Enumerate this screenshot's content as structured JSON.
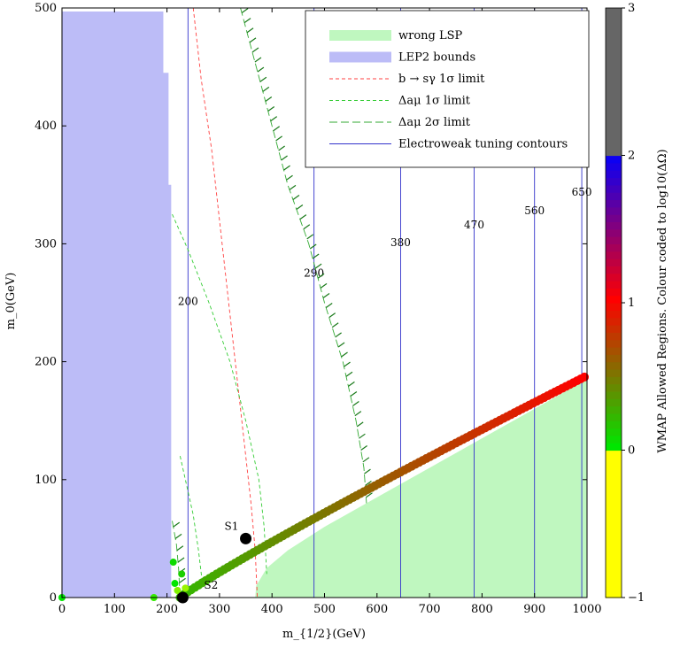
{
  "chart_data": {
    "type": "scatter",
    "xlabel": "m_{1/2}(GeV)",
    "ylabel": "m_0(GeV)",
    "xlim": [
      0,
      1000
    ],
    "ylim": [
      0,
      500
    ],
    "xticks": [
      0,
      100,
      200,
      300,
      400,
      500,
      600,
      700,
      800,
      900,
      1000
    ],
    "yticks": [
      0,
      100,
      200,
      300,
      400,
      500
    ],
    "grid": false,
    "legend": {
      "placement": "top-right",
      "entries": [
        {
          "label": "wrong LSP",
          "kind": "patch",
          "color": "#bff7bf"
        },
        {
          "label": "LEP2 bounds",
          "kind": "patch",
          "color": "#bcbcf7"
        },
        {
          "label": "b → sγ 1σ limit",
          "kind": "line",
          "color": "#ff4040",
          "dash": "4,3"
        },
        {
          "label": "Δaμ 1σ limit",
          "kind": "line",
          "color": "#33cc33",
          "dash": "4,3"
        },
        {
          "label": "Δaμ 2σ limit",
          "kind": "line",
          "color": "#33aa33",
          "dash": "9,4"
        },
        {
          "label": "Electroweak tuning contours",
          "kind": "line",
          "color": "#3333cc",
          "dash": ""
        }
      ]
    },
    "colorbar": {
      "label": "WMAP Allowed Regions. Colour coded to log10(ΔΩ)",
      "range": [
        -1,
        3
      ],
      "ticks": [
        "−1",
        "0",
        "1",
        "2",
        "3"
      ]
    },
    "lep2_region": [
      [
        0,
        0
      ],
      [
        0,
        497
      ],
      [
        193,
        497
      ],
      [
        193,
        445
      ],
      [
        203,
        445
      ],
      [
        203,
        350
      ],
      [
        208,
        350
      ],
      [
        208,
        0
      ]
    ],
    "wrong_lsp_region": [
      [
        368,
        0
      ],
      [
        1000,
        0
      ],
      [
        1000,
        185
      ],
      [
        900,
        160
      ],
      [
        800,
        135
      ],
      [
        700,
        110
      ],
      [
        600,
        85
      ],
      [
        500,
        60
      ],
      [
        430,
        40
      ],
      [
        390,
        25
      ],
      [
        370,
        10
      ]
    ],
    "tuning_contours": [
      {
        "x": 240,
        "label": "200",
        "label_y": 248
      },
      {
        "x": 480,
        "label": "290",
        "label_y": 272
      },
      {
        "x": 645,
        "label": "380",
        "label_y": 298
      },
      {
        "x": 785,
        "label": "470",
        "label_y": 313
      },
      {
        "x": 900,
        "label": "560",
        "label_y": 325
      },
      {
        "x": 990,
        "label": "650",
        "label_y": 341
      }
    ],
    "bsg_limit": [
      [
        250,
        500
      ],
      [
        265,
        440
      ],
      [
        285,
        380
      ],
      [
        300,
        320
      ],
      [
        315,
        260
      ],
      [
        330,
        200
      ],
      [
        345,
        140
      ],
      [
        360,
        80
      ],
      [
        368,
        40
      ],
      [
        372,
        0
      ]
    ],
    "amu_1sigma_upper": [
      [
        210,
        325
      ],
      [
        240,
        295
      ],
      [
        280,
        250
      ],
      [
        320,
        200
      ],
      [
        350,
        150
      ],
      [
        375,
        100
      ],
      [
        385,
        60
      ],
      [
        390,
        20
      ]
    ],
    "amu_1sigma_lower": [
      [
        225,
        120
      ],
      [
        235,
        100
      ],
      [
        250,
        70
      ],
      [
        260,
        40
      ],
      [
        268,
        10
      ]
    ],
    "amu_2sigma_upper": [
      [
        340,
        500
      ],
      [
        370,
        450
      ],
      [
        400,
        400
      ],
      [
        430,
        350
      ],
      [
        470,
        300
      ],
      [
        500,
        250
      ],
      [
        535,
        200
      ],
      [
        560,
        150
      ],
      [
        575,
        110
      ],
      [
        580,
        80
      ]
    ],
    "amu_2sigma_lower": [
      [
        210,
        65
      ],
      [
        218,
        45
      ],
      [
        222,
        25
      ],
      [
        225,
        0
      ]
    ],
    "wmap_band": {
      "x_start": 225,
      "y_start": 0,
      "x_end": 995,
      "y_end": 187,
      "log_dOmega_start": 0.2,
      "log_dOmega_end": 1.0
    },
    "benchmark_points": [
      {
        "name": "S1",
        "x": 350,
        "y": 50
      },
      {
        "name": "S2",
        "x": 230,
        "y": 0
      }
    ]
  }
}
